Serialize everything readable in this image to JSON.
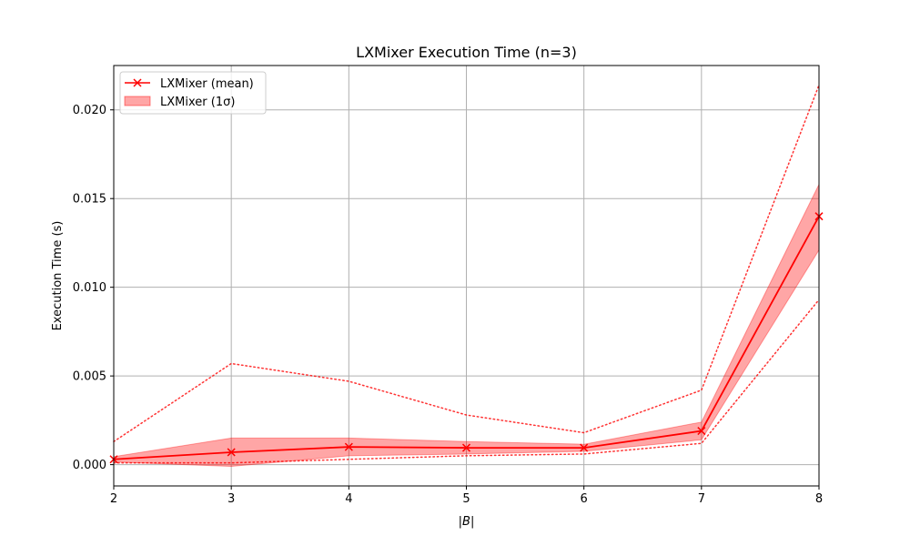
{
  "chart_data": {
    "type": "line",
    "title": "LXMixer Execution Time (n=3)",
    "xlabel": "|B|",
    "ylabel": "Execution Time (s)",
    "x": [
      2,
      3,
      4,
      5,
      6,
      7,
      8
    ],
    "xlim": [
      2,
      8
    ],
    "ylim": [
      -0.0012,
      0.0225
    ],
    "xticks": [
      "2",
      "3",
      "4",
      "5",
      "6",
      "7",
      "8"
    ],
    "yticks": [
      "0.000",
      "0.005",
      "0.010",
      "0.015",
      "0.020"
    ],
    "ytick_values": [
      0.0,
      0.005,
      0.01,
      0.015,
      0.02
    ],
    "grid": true,
    "legend_position": "top-left",
    "series": [
      {
        "name": "LXMixer (mean)",
        "kind": "line-marker",
        "marker": "x",
        "color": "#ff0000",
        "values": [
          0.0003,
          0.0007,
          0.001,
          0.00095,
          0.00095,
          0.0019,
          0.014
        ]
      },
      {
        "name": "LXMixer (1σ)",
        "kind": "band",
        "color": "#ff0000",
        "lower": [
          0.00015,
          -0.0001,
          0.0005,
          0.0006,
          0.00075,
          0.0014,
          0.0121
        ],
        "upper": [
          0.00045,
          0.0015,
          0.0015,
          0.0013,
          0.00115,
          0.0024,
          0.0158
        ]
      },
      {
        "kind": "dotted",
        "color": "#ff0000",
        "values": [
          0.0013,
          0.0057,
          0.0047,
          0.0028,
          0.0018,
          0.0042,
          0.0214
        ]
      },
      {
        "kind": "dotted",
        "color": "#ff0000",
        "values": [
          0.0001,
          0.0001,
          0.0003,
          0.0005,
          0.0006,
          0.0012,
          0.0093
        ]
      }
    ]
  }
}
